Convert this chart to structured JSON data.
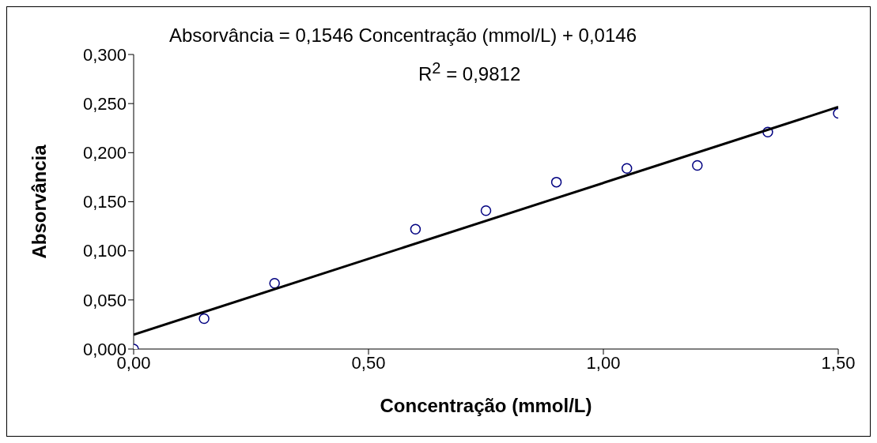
{
  "chart_data": {
    "type": "scatter",
    "xlabel": "Concentração (mmol/L)",
    "ylabel": "Absorvância",
    "annotations": [
      "Absorvância = 0,1546 Concentração (mmol/L) + 0,0146",
      "R$^{2}$ = 0,9812"
    ],
    "series": [
      {
        "color": "#000080",
        "marker": "circle",
        "x": [
          0,
          0.15,
          0.3,
          0.6,
          0.75,
          0.9,
          1.05,
          1.2,
          1.35,
          1.5
        ],
        "values": [
          0.0,
          0.031,
          0.067,
          0.122,
          0.141,
          0.17,
          0.184,
          0.187,
          0.221,
          0.24
        ]
      },
      {
        "type": "line",
        "color": "#000000",
        "marker": "none",
        "x": [
          0,
          1.5
        ],
        "values": [
          0.0146,
          0.2465
        ]
      }
    ],
    "xlim": [
      0,
      1.5
    ],
    "xticks": [
      {
        "value": 0,
        "label": "0,00"
      },
      {
        "value": 0.5,
        "label": "0,50"
      },
      {
        "value": 1,
        "label": "1,00"
      },
      {
        "value": 1.5,
        "label": "1,50"
      }
    ],
    "ylim": [
      0,
      0.3
    ],
    "yticks": [
      {
        "value": 0,
        "label": "0,000"
      },
      {
        "value": 0.05,
        "label": "0,050"
      },
      {
        "value": 0.1,
        "label": "0,100"
      },
      {
        "value": 0.15,
        "label": "0,150"
      },
      {
        "value": 0.2,
        "label": "0,200"
      },
      {
        "value": 0.25,
        "label": "0,250"
      },
      {
        "value": 0.3,
        "label": "0,300"
      }
    ],
    "grid": false,
    "legend": false
  }
}
